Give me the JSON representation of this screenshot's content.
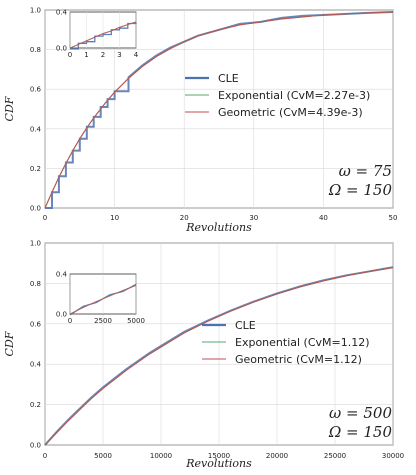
{
  "chart_data": [
    {
      "type": "line",
      "xlabel": "Revolutions",
      "ylabel": "CDF",
      "xlim": [
        0,
        50
      ],
      "ylim": [
        0,
        1.0
      ],
      "xticks": [
        "0",
        "10",
        "20",
        "30",
        "40",
        "50"
      ],
      "yticks": [
        "0.0",
        "0.2",
        "0.4",
        "0.6",
        "0.8",
        "1.0"
      ],
      "grid": true,
      "legend_position": "center-right",
      "annotation_lines": [
        "ω = 75",
        "Ω = 150"
      ],
      "x": [
        0,
        1,
        2,
        3,
        4,
        5,
        6,
        7,
        8,
        9,
        10,
        12,
        14,
        16,
        18,
        20,
        22,
        25,
        28,
        31,
        34,
        37,
        40,
        43,
        46,
        50
      ],
      "series": [
        {
          "name": "CLE",
          "color": "#4c72b0",
          "values": [
            0.0,
            0.08,
            0.16,
            0.23,
            0.29,
            0.35,
            0.41,
            0.46,
            0.51,
            0.55,
            0.59,
            0.66,
            0.72,
            0.77,
            0.81,
            0.84,
            0.87,
            0.9,
            0.93,
            0.94,
            0.96,
            0.97,
            0.975,
            0.98,
            0.985,
            0.99
          ]
        },
        {
          "name": "Exponential (CvM=2.27e-3)",
          "color": "#55a868",
          "values": [
            0.0,
            0.08,
            0.155,
            0.225,
            0.29,
            0.35,
            0.405,
            0.455,
            0.5,
            0.545,
            0.585,
            0.655,
            0.715,
            0.765,
            0.805,
            0.84,
            0.87,
            0.9,
            0.925,
            0.94,
            0.955,
            0.965,
            0.975,
            0.98,
            0.985,
            0.99
          ]
        },
        {
          "name": "Geometric (CvM=4.39e-3)",
          "color": "#c44e52",
          "values": [
            0.0,
            0.08,
            0.155,
            0.225,
            0.29,
            0.35,
            0.405,
            0.455,
            0.5,
            0.545,
            0.585,
            0.655,
            0.715,
            0.765,
            0.805,
            0.84,
            0.87,
            0.9,
            0.925,
            0.94,
            0.955,
            0.965,
            0.975,
            0.98,
            0.985,
            0.99
          ]
        }
      ],
      "inset": {
        "xlim": [
          0,
          4
        ],
        "ylim": [
          0,
          0.4
        ],
        "xticks": [
          "0",
          "1",
          "2",
          "3",
          "4"
        ],
        "yticks": [
          "0.0",
          "0.4"
        ],
        "x": [
          0,
          0.5,
          1,
          1.5,
          2,
          2.5,
          3,
          3.5,
          4
        ],
        "values": [
          0.0,
          0.04,
          0.08,
          0.12,
          0.16,
          0.19,
          0.23,
          0.26,
          0.29
        ]
      }
    },
    {
      "type": "line",
      "xlabel": "Revolutions",
      "ylabel": "CDF",
      "xlim": [
        0,
        30000
      ],
      "ylim": [
        0,
        1.0
      ],
      "xticks": [
        "0",
        "5000",
        "10000",
        "15000",
        "20000",
        "25000",
        "30000"
      ],
      "yticks": [
        "0.0",
        "0.2",
        "0.4",
        "0.6",
        "0.8",
        "1.0"
      ],
      "grid": true,
      "legend_position": "center-right",
      "annotation_lines": [
        "ω = 500",
        "Ω = 150"
      ],
      "x": [
        0,
        1000,
        2000,
        3000,
        4000,
        5000,
        6000,
        7000,
        8000,
        9000,
        10000,
        12000,
        14000,
        16000,
        18000,
        20000,
        22000,
        24000,
        26000,
        28000,
        30000
      ],
      "series": [
        {
          "name": "CLE",
          "color": "#4c72b0",
          "values": [
            0.0,
            0.065,
            0.125,
            0.18,
            0.235,
            0.285,
            0.33,
            0.375,
            0.415,
            0.455,
            0.49,
            0.56,
            0.615,
            0.665,
            0.71,
            0.75,
            0.785,
            0.815,
            0.84,
            0.86,
            0.88
          ]
        },
        {
          "name": "Exponential (CvM=1.12)",
          "color": "#55a868",
          "values": [
            0.0,
            0.06,
            0.12,
            0.175,
            0.23,
            0.28,
            0.325,
            0.37,
            0.41,
            0.45,
            0.485,
            0.555,
            0.612,
            0.663,
            0.708,
            0.748,
            0.783,
            0.813,
            0.838,
            0.86,
            0.878
          ]
        },
        {
          "name": "Geometric (CvM=1.12)",
          "color": "#c44e52",
          "values": [
            0.0,
            0.06,
            0.12,
            0.175,
            0.23,
            0.28,
            0.325,
            0.37,
            0.41,
            0.45,
            0.485,
            0.555,
            0.612,
            0.663,
            0.708,
            0.748,
            0.783,
            0.813,
            0.838,
            0.86,
            0.878
          ]
        }
      ],
      "inset": {
        "xlim": [
          0,
          5000
        ],
        "ylim": [
          0,
          0.4
        ],
        "xticks": [
          "0",
          "2500",
          "5000"
        ],
        "yticks": [
          "0.0",
          "0.4"
        ],
        "x": [
          0,
          1000,
          2000,
          3000,
          4000,
          5000
        ],
        "values": [
          0.0,
          0.065,
          0.125,
          0.18,
          0.235,
          0.285
        ]
      }
    }
  ]
}
